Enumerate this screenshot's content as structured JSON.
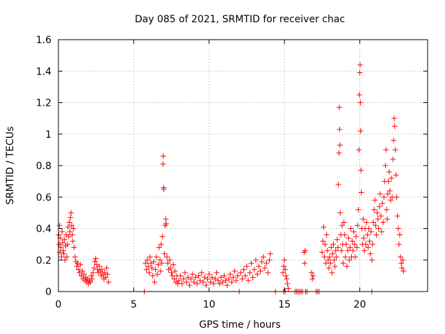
{
  "chart_data": {
    "type": "scatter",
    "title": "Day 085 of 2021, SRMTID for receiver chac",
    "xlabel": "GPS time / hours",
    "ylabel": "SRMTID / TECUs",
    "xlim": [
      0,
      24.5
    ],
    "ylim": [
      0,
      1.6
    ],
    "xticks": [
      0,
      5,
      10,
      15,
      20
    ],
    "yticks": [
      0,
      0.2,
      0.4,
      0.6,
      0.8,
      1,
      1.2,
      1.4,
      1.6
    ],
    "xtick_labels": [
      "0",
      "5",
      "10",
      "15",
      "20"
    ],
    "ytick_labels": [
      "0",
      "0.2",
      "0.4",
      "0.6",
      "0.8",
      "1",
      "1.2",
      "1.4",
      "1.6"
    ],
    "grid": true,
    "marker": "+",
    "color": "#ff0000",
    "series": [
      {
        "name": "SRMTID",
        "points": [
          [
            0.02,
            0.36
          ],
          [
            0.05,
            0.3
          ],
          [
            0.08,
            0.42
          ],
          [
            0.1,
            0.25
          ],
          [
            0.13,
            0.34
          ],
          [
            0.16,
            0.28
          ],
          [
            0.2,
            0.22
          ],
          [
            0.24,
            0.38
          ],
          [
            0.28,
            0.31
          ],
          [
            0.32,
            0.26
          ],
          [
            0.36,
            0.24
          ],
          [
            0.4,
            0.33
          ],
          [
            0.44,
            0.2
          ],
          [
            0.48,
            0.29
          ],
          [
            0.52,
            0.36
          ],
          [
            0.56,
            0.22
          ],
          [
            0.6,
            0.3
          ],
          [
            0.64,
            0.41
          ],
          [
            0.68,
            0.35
          ],
          [
            0.72,
            0.44
          ],
          [
            0.76,
            0.38
          ],
          [
            0.8,
            0.47
          ],
          [
            0.84,
            0.5
          ],
          [
            0.88,
            0.42
          ],
          [
            0.92,
            0.36
          ],
          [
            0.96,
            0.32
          ],
          [
            1.0,
            0.4
          ],
          [
            1.04,
            0.28
          ],
          [
            1.1,
            0.22
          ],
          [
            1.16,
            0.19
          ],
          [
            1.22,
            0.16
          ],
          [
            1.28,
            0.18
          ],
          [
            1.34,
            0.14
          ],
          [
            1.4,
            0.12
          ],
          [
            1.46,
            0.17
          ],
          [
            1.52,
            0.1
          ],
          [
            1.58,
            0.13
          ],
          [
            1.64,
            0.08
          ],
          [
            1.7,
            0.11
          ],
          [
            1.76,
            0.07
          ],
          [
            1.82,
            0.09
          ],
          [
            1.88,
            0.06
          ],
          [
            1.94,
            0.08
          ],
          [
            2.0,
            0.05
          ],
          [
            2.06,
            0.07
          ],
          [
            2.12,
            0.06
          ],
          [
            2.18,
            0.1
          ],
          [
            2.24,
            0.08
          ],
          [
            2.3,
            0.12
          ],
          [
            2.36,
            0.15
          ],
          [
            2.42,
            0.19
          ],
          [
            2.48,
            0.21
          ],
          [
            2.54,
            0.17
          ],
          [
            2.6,
            0.14
          ],
          [
            2.66,
            0.12
          ],
          [
            2.72,
            0.16
          ],
          [
            2.78,
            0.13
          ],
          [
            2.84,
            0.1
          ],
          [
            2.9,
            0.14
          ],
          [
            2.96,
            0.11
          ],
          [
            3.02,
            0.08
          ],
          [
            3.08,
            0.12
          ],
          [
            3.14,
            0.09
          ],
          [
            3.2,
            0.15
          ],
          [
            3.26,
            0.11
          ],
          [
            3.32,
            0.06
          ],
          [
            5.7,
            0.0
          ],
          [
            5.78,
            0.18
          ],
          [
            5.84,
            0.14
          ],
          [
            5.9,
            0.2
          ],
          [
            5.96,
            0.16
          ],
          [
            6.02,
            0.12
          ],
          [
            6.08,
            0.22
          ],
          [
            6.14,
            0.18
          ],
          [
            6.2,
            0.15
          ],
          [
            6.26,
            0.1
          ],
          [
            6.32,
            0.19
          ],
          [
            6.38,
            0.06
          ],
          [
            6.44,
            0.14
          ],
          [
            6.5,
            0.22
          ],
          [
            6.56,
            0.11
          ],
          [
            6.62,
            0.17
          ],
          [
            6.68,
            0.28
          ],
          [
            6.74,
            0.2
          ],
          [
            6.78,
            0.13
          ],
          [
            6.82,
            0.3
          ],
          [
            6.86,
            0.18
          ],
          [
            6.9,
            0.35
          ],
          [
            6.94,
            0.81
          ],
          [
            6.96,
            0.86
          ],
          [
            6.98,
            0.66
          ],
          [
            7.0,
            0.65
          ],
          [
            7.04,
            0.24
          ],
          [
            7.08,
            0.42
          ],
          [
            7.12,
            0.46
          ],
          [
            7.16,
            0.43
          ],
          [
            7.2,
            0.22
          ],
          [
            7.26,
            0.18
          ],
          [
            7.32,
            0.14
          ],
          [
            7.38,
            0.2
          ],
          [
            7.44,
            0.15
          ],
          [
            7.5,
            0.12
          ],
          [
            7.56,
            0.1
          ],
          [
            7.62,
            0.17
          ],
          [
            7.68,
            0.08
          ],
          [
            7.74,
            0.13
          ],
          [
            7.8,
            0.06
          ],
          [
            7.86,
            0.1
          ],
          [
            7.92,
            0.05
          ],
          [
            8.0,
            0.07
          ],
          [
            8.1,
            0.1
          ],
          [
            8.2,
            0.05
          ],
          [
            8.3,
            0.08
          ],
          [
            8.4,
            0.12
          ],
          [
            8.5,
            0.06
          ],
          [
            8.6,
            0.09
          ],
          [
            8.7,
            0.04
          ],
          [
            8.8,
            0.08
          ],
          [
            8.9,
            0.11
          ],
          [
            9.0,
            0.06
          ],
          [
            9.1,
            0.09
          ],
          [
            9.2,
            0.05
          ],
          [
            9.3,
            0.1
          ],
          [
            9.4,
            0.07
          ],
          [
            9.5,
            0.12
          ],
          [
            9.6,
            0.06
          ],
          [
            9.7,
            0.09
          ],
          [
            9.8,
            0.04
          ],
          [
            9.9,
            0.08
          ],
          [
            10.0,
            0.11
          ],
          [
            10.1,
            0.06
          ],
          [
            10.2,
            0.09
          ],
          [
            10.3,
            0.05
          ],
          [
            10.4,
            0.08
          ],
          [
            10.5,
            0.12
          ],
          [
            10.6,
            0.07
          ],
          [
            10.7,
            0.05
          ],
          [
            10.8,
            0.09
          ],
          [
            10.9,
            0.06
          ],
          [
            11.0,
            0.1
          ],
          [
            11.1,
            0.07
          ],
          [
            11.2,
            0.04
          ],
          [
            11.3,
            0.08
          ],
          [
            11.4,
            0.11
          ],
          [
            11.5,
            0.06
          ],
          [
            11.6,
            0.09
          ],
          [
            11.7,
            0.13
          ],
          [
            11.8,
            0.07
          ],
          [
            11.9,
            0.1
          ],
          [
            12.0,
            0.0
          ],
          [
            12.1,
            0.12
          ],
          [
            12.2,
            0.08
          ],
          [
            12.3,
            0.14
          ],
          [
            12.4,
            0.1
          ],
          [
            12.5,
            0.16
          ],
          [
            12.6,
            0.07
          ],
          [
            12.7,
            0.12
          ],
          [
            12.8,
            0.18
          ],
          [
            12.9,
            0.09
          ],
          [
            13.0,
            0.14
          ],
          [
            13.1,
            0.2
          ],
          [
            13.2,
            0.11
          ],
          [
            13.3,
            0.16
          ],
          [
            13.4,
            0.13
          ],
          [
            13.5,
            0.19
          ],
          [
            13.6,
            0.22
          ],
          [
            13.7,
            0.15
          ],
          [
            13.8,
            0.18
          ],
          [
            13.9,
            0.12
          ],
          [
            14.0,
            0.2
          ],
          [
            14.06,
            0.24
          ],
          [
            14.4,
            0.0
          ],
          [
            14.95,
            0.0
          ],
          [
            15.05,
            0.0
          ],
          [
            14.9,
            0.12
          ],
          [
            14.95,
            0.16
          ],
          [
            15.0,
            0.2
          ],
          [
            15.05,
            0.14
          ],
          [
            15.1,
            0.1
          ],
          [
            15.15,
            0.08
          ],
          [
            15.2,
            0.05
          ],
          [
            15.25,
            0.02
          ],
          [
            15.7,
            0.0
          ],
          [
            15.8,
            0.0
          ],
          [
            15.9,
            0.0
          ],
          [
            16.0,
            0.0
          ],
          [
            16.1,
            0.0
          ],
          [
            16.2,
            0.0
          ],
          [
            16.4,
            0.0
          ],
          [
            16.5,
            0.0
          ],
          [
            17.1,
            0.0
          ],
          [
            17.2,
            0.0
          ],
          [
            17.3,
            0.0
          ],
          [
            16.3,
            0.25
          ],
          [
            16.34,
            0.18
          ],
          [
            16.38,
            0.26
          ],
          [
            16.8,
            0.12
          ],
          [
            16.85,
            0.08
          ],
          [
            16.9,
            0.1
          ],
          [
            17.5,
            0.25
          ],
          [
            17.55,
            0.32
          ],
          [
            17.6,
            0.41
          ],
          [
            17.65,
            0.22
          ],
          [
            17.7,
            0.3
          ],
          [
            17.75,
            0.18
          ],
          [
            17.8,
            0.36
          ],
          [
            17.85,
            0.26
          ],
          [
            17.9,
            0.2
          ],
          [
            17.95,
            0.15
          ],
          [
            18.0,
            0.22
          ],
          [
            18.05,
            0.18
          ],
          [
            18.1,
            0.28
          ],
          [
            18.15,
            0.12
          ],
          [
            18.2,
            0.24
          ],
          [
            18.25,
            0.3
          ],
          [
            18.3,
            0.2
          ],
          [
            18.35,
            0.16
          ],
          [
            18.4,
            0.26
          ],
          [
            18.45,
            0.22
          ],
          [
            18.5,
            0.33
          ],
          [
            18.55,
            0.28
          ],
          [
            18.58,
            0.68
          ],
          [
            18.62,
            0.88
          ],
          [
            18.64,
            1.17
          ],
          [
            18.66,
            1.03
          ],
          [
            18.68,
            0.93
          ],
          [
            18.7,
            0.5
          ],
          [
            18.74,
            0.36
          ],
          [
            18.78,
            0.26
          ],
          [
            18.82,
            0.42
          ],
          [
            18.86,
            0.3
          ],
          [
            18.9,
            0.18
          ],
          [
            18.95,
            0.44
          ],
          [
            19.0,
            0.36
          ],
          [
            19.05,
            0.22
          ],
          [
            19.1,
            0.3
          ],
          [
            19.15,
            0.16
          ],
          [
            19.2,
            0.26
          ],
          [
            19.25,
            0.34
          ],
          [
            19.3,
            0.2
          ],
          [
            19.35,
            0.28
          ],
          [
            19.4,
            0.4
          ],
          [
            19.45,
            0.22
          ],
          [
            19.5,
            0.32
          ],
          [
            19.55,
            0.26
          ],
          [
            19.6,
            0.38
          ],
          [
            19.65,
            0.3
          ],
          [
            19.7,
            0.22
          ],
          [
            19.75,
            0.35
          ],
          [
            19.8,
            0.28
          ],
          [
            19.85,
            0.42
          ],
          [
            19.9,
            0.52
          ],
          [
            19.94,
            0.9
          ],
          [
            19.97,
            1.25
          ],
          [
            20.0,
            1.39
          ],
          [
            20.02,
            1.44
          ],
          [
            20.04,
            1.2
          ],
          [
            20.06,
            1.02
          ],
          [
            20.08,
            0.77
          ],
          [
            20.1,
            0.63
          ],
          [
            20.14,
            0.4
          ],
          [
            20.18,
            0.3
          ],
          [
            20.22,
            0.46
          ],
          [
            20.26,
            0.34
          ],
          [
            20.3,
            0.26
          ],
          [
            20.35,
            0.4
          ],
          [
            20.4,
            0.3
          ],
          [
            20.45,
            0.44
          ],
          [
            20.5,
            0.36
          ],
          [
            20.55,
            0.28
          ],
          [
            20.6,
            0.4
          ],
          [
            20.65,
            0.32
          ],
          [
            20.7,
            0.24
          ],
          [
            20.75,
            0.38
          ],
          [
            20.8,
            0.2
          ],
          [
            20.85,
            0.3
          ],
          [
            20.9,
            0.44
          ],
          [
            20.95,
            0.52
          ],
          [
            21.0,
            0.58
          ],
          [
            21.05,
            0.42
          ],
          [
            21.1,
            0.36
          ],
          [
            21.15,
            0.5
          ],
          [
            21.2,
            0.46
          ],
          [
            21.25,
            0.4
          ],
          [
            21.3,
            0.54
          ],
          [
            21.35,
            0.62
          ],
          [
            21.4,
            0.48
          ],
          [
            21.45,
            0.38
          ],
          [
            21.5,
            0.56
          ],
          [
            21.55,
            0.44
          ],
          [
            21.6,
            0.6
          ],
          [
            21.65,
            0.7
          ],
          [
            21.7,
            0.8
          ],
          [
            21.74,
            0.9
          ],
          [
            21.78,
            0.52
          ],
          [
            21.82,
            0.46
          ],
          [
            21.86,
            0.62
          ],
          [
            21.9,
            0.7
          ],
          [
            21.95,
            0.76
          ],
          [
            22.0,
            0.64
          ],
          [
            22.05,
            0.58
          ],
          [
            22.1,
            0.72
          ],
          [
            22.15,
            0.6
          ],
          [
            22.2,
            0.84
          ],
          [
            22.24,
            0.96
          ],
          [
            22.28,
            1.1
          ],
          [
            22.32,
            1.05
          ],
          [
            22.36,
            0.9
          ],
          [
            22.4,
            0.74
          ],
          [
            22.45,
            0.6
          ],
          [
            22.5,
            0.48
          ],
          [
            22.55,
            0.4
          ],
          [
            22.6,
            0.3
          ],
          [
            22.65,
            0.36
          ],
          [
            22.7,
            0.22
          ],
          [
            22.75,
            0.18
          ],
          [
            22.8,
            0.15
          ],
          [
            22.85,
            0.2
          ],
          [
            22.9,
            0.13
          ],
          [
            20.8,
            0.0
          ]
        ]
      }
    ]
  }
}
